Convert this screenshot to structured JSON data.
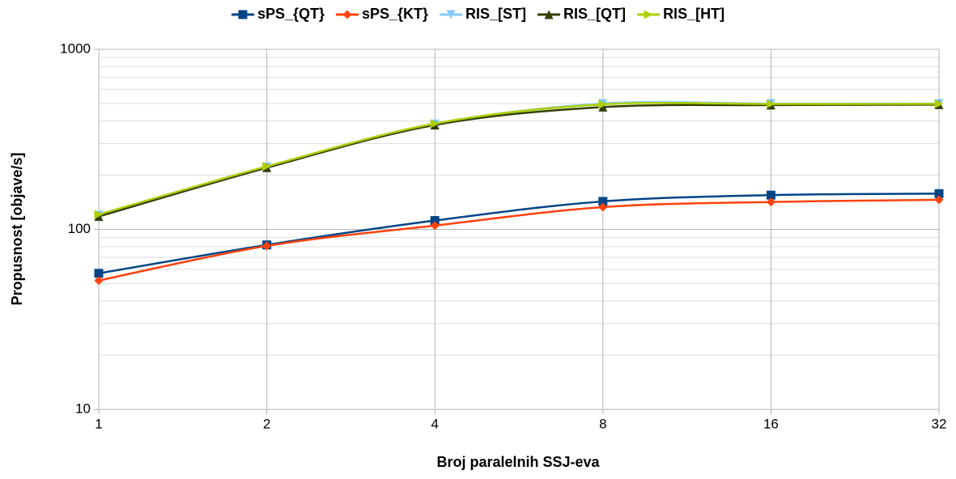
{
  "chart_data": {
    "type": "line",
    "x_label": "Broj paralelnih SSJ-eva",
    "y_label": "Propusnost [objave/s]",
    "x": [
      1,
      2,
      4,
      8,
      16,
      32
    ],
    "xscale": "log",
    "yscale": "log",
    "xlim": [
      1,
      32
    ],
    "xticks": [
      1,
      2,
      4,
      8,
      16,
      32
    ],
    "ylim": [
      10,
      1000
    ],
    "yticks": [
      10,
      100,
      1000
    ],
    "grid": true,
    "minor_grid": true,
    "legend": "top",
    "series": [
      {
        "name": "sPS_{QT}",
        "color": "#004586",
        "marker": "square",
        "values": [
          57,
          82,
          112,
          143,
          155,
          158
        ]
      },
      {
        "name": "sPS_{KT}",
        "color": "#ff420e",
        "marker": "diamond",
        "values": [
          52,
          81,
          105,
          133,
          142,
          146
        ]
      },
      {
        "name": "RIS_[ST]",
        "color": "#83caff",
        "marker": "triangle-down",
        "values": [
          120,
          222,
          385,
          500,
          500,
          500
        ]
      },
      {
        "name": "RIS_[QT]",
        "color": "#314004",
        "marker": "triangle-up",
        "values": [
          118,
          220,
          380,
          478,
          490,
          493
        ]
      },
      {
        "name": "RIS_[HT]",
        "color": "#aecf00",
        "marker": "triangle-right",
        "values": [
          121,
          224,
          387,
          495,
          497,
          498
        ]
      }
    ]
  }
}
